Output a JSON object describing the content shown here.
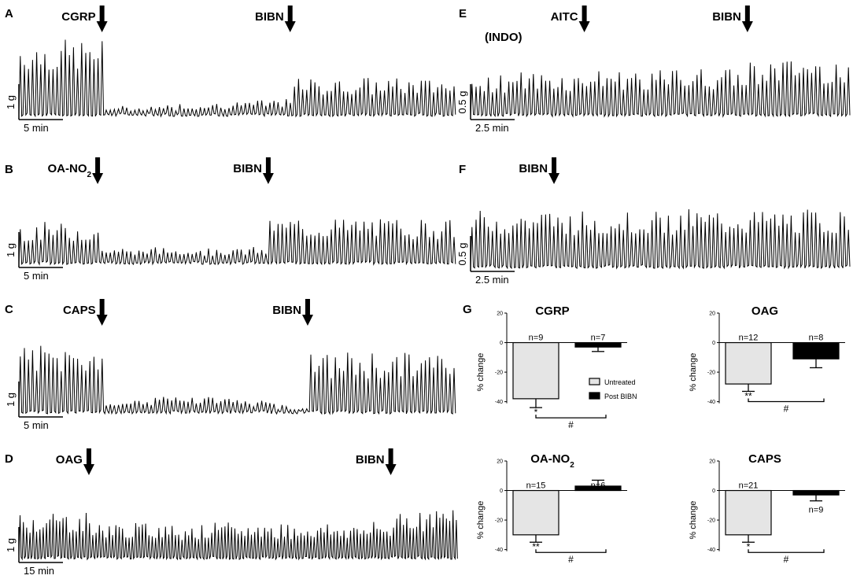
{
  "traces": [
    {
      "id": "A",
      "events": [
        {
          "label": "CGRP",
          "frac": 0.19
        },
        {
          "label": "BIBN",
          "frac": 0.62
        }
      ],
      "scale_y": "1 g",
      "scale_x": "5 min",
      "pattern": [
        1.0,
        0.2,
        0.48
      ]
    },
    {
      "id": "B",
      "events": [
        {
          "label": "OA-NO",
          "sub": "2",
          "frac": 0.18
        },
        {
          "label": "BIBN",
          "frac": 0.57
        }
      ],
      "scale_y": "1 g",
      "scale_x": "5 min",
      "pattern": [
        0.55,
        0.2,
        0.62
      ]
    },
    {
      "id": "C",
      "events": [
        {
          "label": "CAPS",
          "frac": 0.19
        },
        {
          "label": "BIBN",
          "frac": 0.66
        }
      ],
      "scale_y": "1 g",
      "scale_x": "5 min",
      "pattern": [
        0.85,
        0.12,
        0.75
      ]
    },
    {
      "id": "D",
      "events": [
        {
          "label": "OAG",
          "frac": 0.16
        },
        {
          "label": "BIBN",
          "frac": 0.85
        }
      ],
      "scale_y": "1 g",
      "scale_x": "15 min",
      "pattern": [
        0.6,
        0.45,
        0.65
      ]
    },
    {
      "id": "E",
      "pre": "(INDO)",
      "events": [
        {
          "label": "AITC",
          "frac": 0.3
        },
        {
          "label": "BIBN",
          "frac": 0.73
        }
      ],
      "scale_y": "0.5 g",
      "scale_x": "2.5 min",
      "pattern": [
        0.55,
        0.6,
        0.75
      ]
    },
    {
      "id": "F",
      "events": [
        {
          "label": "BIBN",
          "frac": 0.22
        }
      ],
      "scale_y": "0.5 g",
      "scale_x": "2.5 min",
      "pattern": [
        0.75,
        0.75,
        0.75
      ]
    }
  ],
  "panel_g_label": "G",
  "chart_data": [
    {
      "type": "bar",
      "title": "CGRP",
      "ylabel": "% change",
      "ylim": [
        -45,
        20
      ],
      "yticks": [
        20,
        0,
        -20,
        -40
      ],
      "categories": [
        "Untreated",
        "Post BIBN"
      ],
      "values": [
        -38,
        -3
      ],
      "errors": [
        6,
        3
      ],
      "n_labels": [
        "n=9",
        "n=7"
      ],
      "sig_labels": [
        "*"
      ],
      "comparison_label": "#",
      "legend": [
        {
          "label": "Untreated",
          "color": "#e5e5e5"
        },
        {
          "label": "Post BIBN",
          "color": "#000000"
        }
      ]
    },
    {
      "type": "bar",
      "title": "OAG",
      "ylabel": "% change",
      "ylim": [
        -45,
        20
      ],
      "yticks": [
        20,
        0,
        -20,
        -40
      ],
      "categories": [
        "Untreated",
        "Post BIBN"
      ],
      "values": [
        -28,
        -11
      ],
      "errors": [
        5,
        6
      ],
      "n_labels": [
        "n=12",
        "n=8"
      ],
      "sig_labels": [
        "**"
      ],
      "comparison_label": "#"
    },
    {
      "type": "bar",
      "title": "OA-NO",
      "title_sub": "2",
      "ylabel": "% change",
      "ylim": [
        -45,
        20
      ],
      "yticks": [
        20,
        0,
        -20,
        -40
      ],
      "categories": [
        "Untreated",
        "Post BIBN"
      ],
      "values": [
        -30,
        3
      ],
      "errors": [
        5,
        4
      ],
      "n_labels": [
        "n=15",
        "n=6"
      ],
      "sig_labels": [
        "**"
      ],
      "comparison_label": "#"
    },
    {
      "type": "bar",
      "title": "CAPS",
      "ylabel": "% change",
      "ylim": [
        -45,
        20
      ],
      "yticks": [
        20,
        0,
        -20,
        -40
      ],
      "categories": [
        "Untreated",
        "Post BIBN"
      ],
      "values": [
        -30,
        -3
      ],
      "errors": [
        5,
        4
      ],
      "n_labels": [
        "n=21",
        "n=9"
      ],
      "sig_labels": [
        "*"
      ],
      "comparison_label": "#"
    }
  ]
}
